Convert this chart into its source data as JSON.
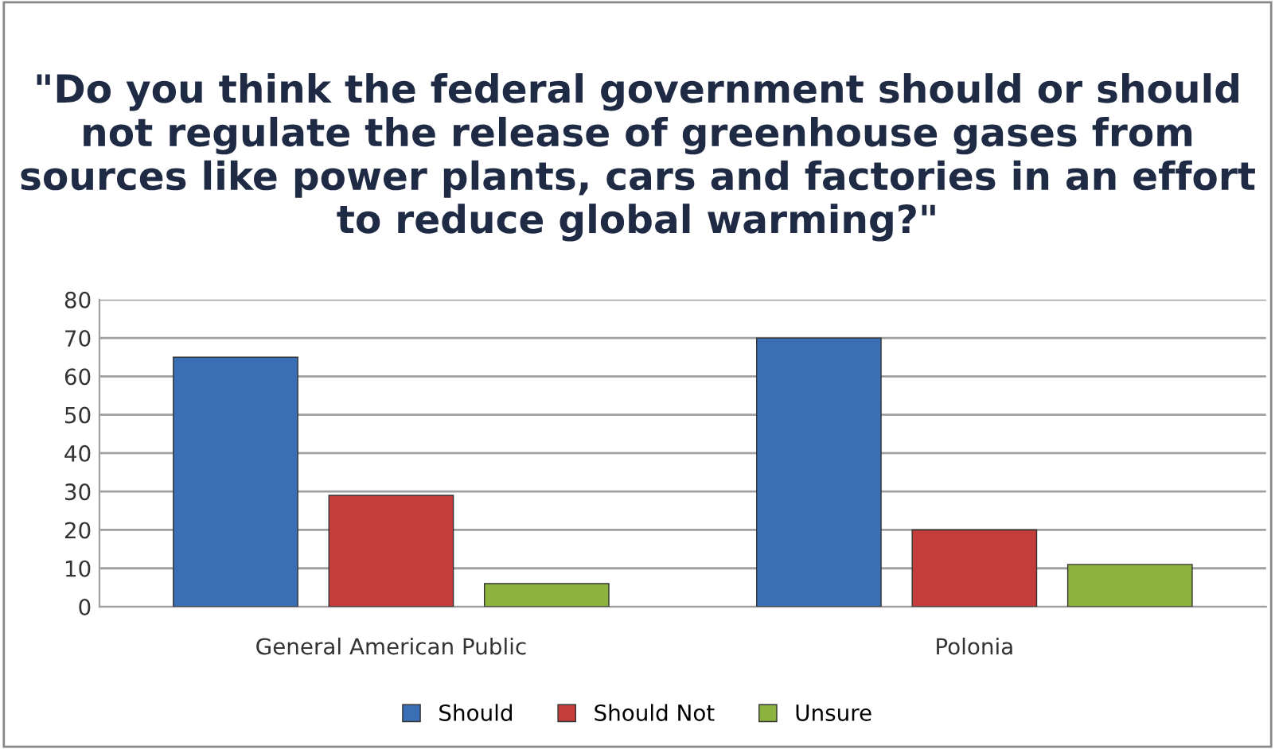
{
  "chart_data": {
    "type": "bar",
    "title": "\"Do you think the federal government should or should not regulate the release of greenhouse gases from sources like power plants, cars and factories in an effort to reduce global warming?\"",
    "categories": [
      "General American Public",
      "Polonia"
    ],
    "series": [
      {
        "name": "Should",
        "color": "#3a6fb5",
        "values": [
          65,
          70
        ]
      },
      {
        "name": "Should Not",
        "color": "#c43d3a",
        "values": [
          29,
          20
        ]
      },
      {
        "name": "Unsure",
        "color": "#8db33f",
        "values": [
          6,
          11
        ]
      }
    ],
    "ylim": [
      0,
      80
    ],
    "yticks": [
      0,
      10,
      20,
      30,
      40,
      50,
      60,
      70,
      80
    ],
    "grid": "y",
    "legend": "bottom"
  }
}
